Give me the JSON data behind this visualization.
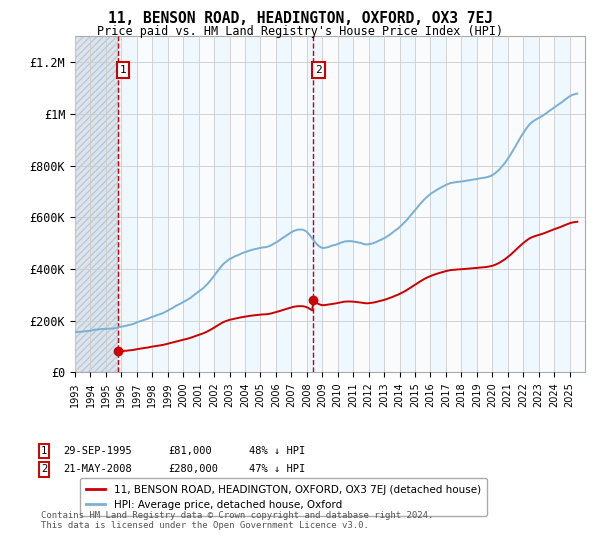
{
  "title": "11, BENSON ROAD, HEADINGTON, OXFORD, OX3 7EJ",
  "subtitle": "Price paid vs. HM Land Registry's House Price Index (HPI)",
  "ylim": [
    0,
    1300000
  ],
  "yticks": [
    0,
    200000,
    400000,
    600000,
    800000,
    1000000,
    1200000
  ],
  "ytick_labels": [
    "£0",
    "£200K",
    "£400K",
    "£600K",
    "£800K",
    "£1M",
    "£1.2M"
  ],
  "sale1_date": 1995.75,
  "sale1_price": 81000,
  "sale1_label": "1",
  "sale2_date": 2008.39,
  "sale2_price": 280000,
  "sale2_label": "2",
  "hpi_color": "#7ab0d4",
  "sale_color": "#cc0000",
  "vline_color": "#cc0000",
  "grid_color": "#cccccc",
  "legend_label1": "11, BENSON ROAD, HEADINGTON, OXFORD, OX3 7EJ (detached house)",
  "legend_label2": "HPI: Average price, detached house, Oxford",
  "footnote": "Contains HM Land Registry data © Crown copyright and database right 2024.\nThis data is licensed under the Open Government Licence v3.0.",
  "xmin": 1993,
  "xmax": 2026,
  "hpi_data": [
    [
      1993.0,
      155000
    ],
    [
      1993.5,
      158000
    ],
    [
      1994.0,
      162000
    ],
    [
      1994.5,
      167000
    ],
    [
      1995.0,
      170000
    ],
    [
      1995.5,
      172000
    ],
    [
      1996.0,
      178000
    ],
    [
      1996.5,
      185000
    ],
    [
      1997.0,
      195000
    ],
    [
      1997.5,
      205000
    ],
    [
      1998.0,
      215000
    ],
    [
      1998.5,
      225000
    ],
    [
      1999.0,
      238000
    ],
    [
      1999.5,
      255000
    ],
    [
      2000.0,
      270000
    ],
    [
      2000.5,
      290000
    ],
    [
      2001.0,
      315000
    ],
    [
      2001.5,
      340000
    ],
    [
      2002.0,
      375000
    ],
    [
      2002.5,
      415000
    ],
    [
      2003.0,
      440000
    ],
    [
      2003.5,
      455000
    ],
    [
      2004.0,
      468000
    ],
    [
      2004.5,
      478000
    ],
    [
      2005.0,
      485000
    ],
    [
      2005.5,
      490000
    ],
    [
      2006.0,
      505000
    ],
    [
      2006.5,
      525000
    ],
    [
      2007.0,
      545000
    ],
    [
      2007.5,
      555000
    ],
    [
      2008.0,
      545000
    ],
    [
      2008.5,
      510000
    ],
    [
      2009.0,
      485000
    ],
    [
      2009.5,
      490000
    ],
    [
      2010.0,
      500000
    ],
    [
      2010.5,
      510000
    ],
    [
      2011.0,
      510000
    ],
    [
      2011.5,
      505000
    ],
    [
      2012.0,
      500000
    ],
    [
      2012.5,
      510000
    ],
    [
      2013.0,
      525000
    ],
    [
      2013.5,
      545000
    ],
    [
      2014.0,
      570000
    ],
    [
      2014.5,
      600000
    ],
    [
      2015.0,
      635000
    ],
    [
      2015.5,
      670000
    ],
    [
      2016.0,
      700000
    ],
    [
      2016.5,
      720000
    ],
    [
      2017.0,
      735000
    ],
    [
      2017.5,
      745000
    ],
    [
      2018.0,
      750000
    ],
    [
      2018.5,
      755000
    ],
    [
      2019.0,
      760000
    ],
    [
      2019.5,
      765000
    ],
    [
      2020.0,
      775000
    ],
    [
      2020.5,
      800000
    ],
    [
      2021.0,
      840000
    ],
    [
      2021.5,
      890000
    ],
    [
      2022.0,
      940000
    ],
    [
      2022.5,
      980000
    ],
    [
      2023.0,
      1000000
    ],
    [
      2023.5,
      1020000
    ],
    [
      2024.0,
      1040000
    ],
    [
      2024.5,
      1060000
    ],
    [
      2025.0,
      1080000
    ],
    [
      2025.5,
      1090000
    ]
  ],
  "sale1_hpi_at_sale": 172000,
  "sale2_hpi_at_sale": 545000
}
